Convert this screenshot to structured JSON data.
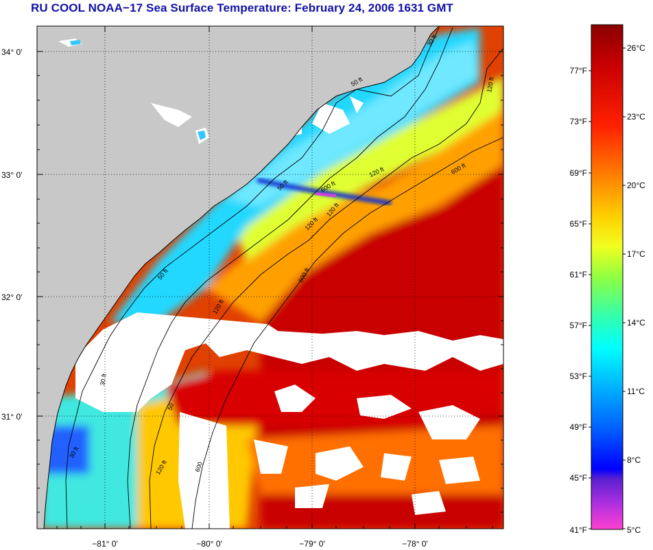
{
  "title": "RU COOL  NOAA−17  Sea Surface Temperature:  February 24, 2006 1631 GMT",
  "map": {
    "lon_labels": [
      "−81° 0′",
      "−80° 0′",
      "−79° 0′",
      "−78° 0′"
    ],
    "lat_labels": [
      "34° 0′",
      "33° 0′",
      "32° 0′",
      "31° 0′"
    ],
    "contour_labels": [
      "30 ft",
      "50 ft",
      "120 ft",
      "600 ft",
      "50 ft",
      "120 ft",
      "600 ft",
      "50 ft",
      "120 ft",
      "30 ft",
      "120 ft",
      "600",
      "30 ft",
      "120 ft",
      "50",
      "600 ft",
      "120 ft"
    ],
    "colors": {
      "land": "#c8c8c8",
      "cloud": "#ffffff",
      "cold": "#00c8ff",
      "warm": "#c80000"
    }
  },
  "colorbar": {
    "fahrenheit_labels": [
      "77°F",
      "73°F",
      "69°F",
      "65°F",
      "61°F",
      "57°F",
      "53°F",
      "49°F",
      "45°F",
      "41°F"
    ],
    "celsius_labels": [
      "26°C",
      "23°C",
      "20°C",
      "17°C",
      "14°C",
      "11°C",
      "8°C",
      "5°C"
    ]
  }
}
